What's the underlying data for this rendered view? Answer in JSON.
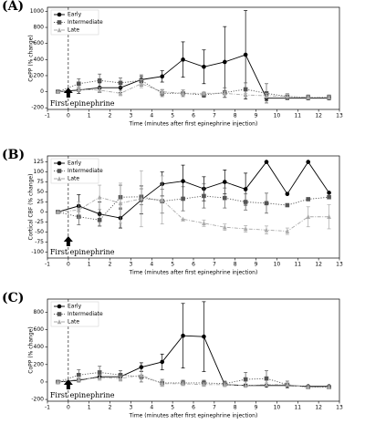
{
  "chart_data": [
    {
      "type": "line",
      "panel_label": "(A)",
      "ylabel": "CePP (% change)",
      "xlabel": "Time (minutes after first epinephrine injection)",
      "annotation": "First epinephrine",
      "x": [
        -0.5,
        0.5,
        1.5,
        2.5,
        3.5,
        4.5,
        5.5,
        6.5,
        7.5,
        8.5,
        9.5,
        10.5,
        11.5,
        12.5
      ],
      "xlim": [
        -1,
        13
      ],
      "xticks": [
        -1,
        0,
        1,
        2,
        3,
        4,
        5,
        6,
        7,
        8,
        9,
        10,
        11,
        12,
        13
      ],
      "ylim": [
        -220,
        1050
      ],
      "yticks": [
        -200,
        0,
        200,
        400,
        600,
        800,
        1000
      ],
      "legend": "upper left",
      "series": [
        {
          "name": "Early",
          "color": "#000000",
          "linestyle": "solid",
          "marker": "circle",
          "values": [
            0,
            20,
            50,
            50,
            150,
            190,
            400,
            310,
            370,
            460,
            -80,
            -80,
            -80,
            -80
          ],
          "errors": [
            0,
            40,
            60,
            60,
            40,
            70,
            220,
            210,
            440,
            550,
            30,
            20,
            20,
            20
          ]
        },
        {
          "name": "Intermediate",
          "color": "#555555",
          "linestyle": "dotted",
          "marker": "square",
          "values": [
            0,
            100,
            140,
            110,
            140,
            -20,
            -20,
            -40,
            -10,
            30,
            -20,
            -60,
            -70,
            -70
          ],
          "errors": [
            0,
            60,
            80,
            60,
            70,
            40,
            40,
            30,
            60,
            80,
            120,
            40,
            30,
            30
          ]
        },
        {
          "name": "Late",
          "color": "#aaaaaa",
          "linestyle": "dashdot",
          "marker": "triangle",
          "values": [
            0,
            30,
            20,
            -20,
            100,
            0,
            -20,
            -20,
            -20,
            -40,
            -50,
            -60,
            -70,
            -70
          ],
          "errors": [
            0,
            30,
            30,
            30,
            50,
            30,
            20,
            20,
            20,
            20,
            30,
            40,
            20,
            20
          ]
        }
      ]
    },
    {
      "type": "line",
      "panel_label": "(B)",
      "ylabel": "Cortical CBF (% change)",
      "xlabel": "Time (minutes after first epinephrine injection)",
      "annotation": "First epinephrine",
      "x": [
        -0.5,
        0.5,
        1.5,
        2.5,
        3.5,
        4.5,
        5.5,
        6.5,
        7.5,
        8.5,
        9.5,
        10.5,
        11.5,
        12.5
      ],
      "xlim": [
        -1,
        13
      ],
      "xticks": [
        -1,
        0,
        1,
        2,
        3,
        4,
        5,
        6,
        7,
        8,
        9,
        10,
        11,
        12,
        13
      ],
      "ylim": [
        -115,
        140
      ],
      "yticks": [
        -100,
        -75,
        -50,
        -25,
        0,
        25,
        50,
        75,
        100,
        125
      ],
      "legend": "upper left",
      "series": [
        {
          "name": "Early",
          "color": "#000000",
          "linestyle": "solid",
          "marker": "circle",
          "values": [
            0,
            15,
            -5,
            -15,
            30,
            70,
            77,
            58,
            75,
            57,
            125,
            45,
            125,
            48
          ],
          "errors": [
            0,
            28,
            30,
            25,
            35,
            30,
            40,
            30,
            30,
            40,
            0,
            0,
            0,
            0
          ]
        },
        {
          "name": "Intermediate",
          "color": "#555555",
          "linestyle": "dotted",
          "marker": "square",
          "values": [
            0,
            -12,
            -20,
            37,
            38,
            27,
            33,
            40,
            35,
            25,
            22,
            17,
            32,
            37
          ],
          "errors": [
            0,
            20,
            15,
            30,
            20,
            30,
            30,
            30,
            25,
            20,
            25,
            0,
            0,
            0
          ]
        },
        {
          "name": "Late",
          "color": "#aaaaaa",
          "linestyle": "dashdot",
          "marker": "triangle",
          "values": [
            0,
            5,
            37,
            22,
            33,
            30,
            -18,
            -28,
            -38,
            -42,
            -45,
            -48,
            -12,
            -12
          ],
          "errors": [
            0,
            20,
            30,
            50,
            70,
            60,
            0,
            8,
            8,
            8,
            10,
            8,
            25,
            30
          ]
        }
      ]
    },
    {
      "type": "line",
      "panel_label": "(C)",
      "ylabel": "CoPP (% change)",
      "xlabel": "Time (minutes after first epinephrine injection)",
      "annotation": "First epinephrine",
      "x": [
        -0.5,
        0.5,
        1.5,
        2.5,
        3.5,
        4.5,
        5.5,
        6.5,
        7.5,
        8.5,
        9.5,
        10.5,
        11.5,
        12.5
      ],
      "xlim": [
        -1,
        13
      ],
      "xticks": [
        -1,
        0,
        1,
        2,
        3,
        4,
        5,
        6,
        7,
        8,
        9,
        10,
        11,
        12,
        13
      ],
      "ylim": [
        -220,
        950
      ],
      "yticks": [
        -200,
        0,
        200,
        400,
        600,
        800
      ],
      "legend": "upper left",
      "series": [
        {
          "name": "Early",
          "color": "#000000",
          "linestyle": "solid",
          "marker": "circle",
          "values": [
            0,
            20,
            60,
            60,
            170,
            230,
            530,
            520,
            -30,
            -40,
            -40,
            -40,
            -50,
            -50
          ],
          "errors": [
            0,
            20,
            30,
            40,
            50,
            90,
            370,
            400,
            20,
            20,
            15,
            10,
            10,
            10
          ]
        },
        {
          "name": "Intermediate",
          "color": "#555555",
          "linestyle": "dotted",
          "marker": "square",
          "values": [
            0,
            80,
            110,
            80,
            60,
            -10,
            -10,
            -10,
            -20,
            30,
            40,
            -30,
            -60,
            -60
          ],
          "errors": [
            0,
            60,
            70,
            50,
            60,
            40,
            30,
            30,
            30,
            80,
            90,
            40,
            20,
            20
          ]
        },
        {
          "name": "Late",
          "color": "#aaaaaa",
          "linestyle": "dashdot",
          "marker": "triangle",
          "values": [
            0,
            30,
            50,
            40,
            80,
            -20,
            -20,
            -30,
            -30,
            -40,
            -30,
            -30,
            -60,
            -60
          ],
          "errors": [
            0,
            30,
            30,
            30,
            50,
            30,
            20,
            20,
            20,
            20,
            20,
            20,
            20,
            20
          ]
        }
      ]
    }
  ]
}
